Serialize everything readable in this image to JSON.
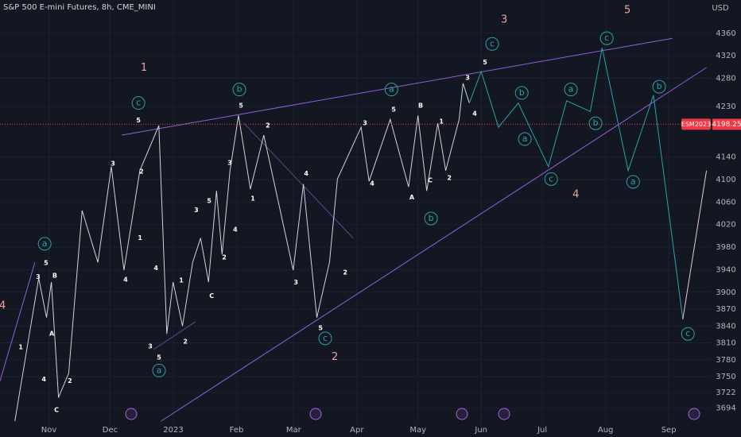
{
  "chart_data": {
    "type": "line",
    "title": "S&P 500 E-mini Futures, 8h, CME_MINI",
    "currency": "USD",
    "background": "#131722",
    "grid": true,
    "xlim": [
      -24,
      325
    ],
    "ylim": [
      3664,
      4419
    ],
    "xticks": [
      {
        "value": 0,
        "label": "Nov"
      },
      {
        "value": 30,
        "label": "Dec"
      },
      {
        "value": 61,
        "label": "2023"
      },
      {
        "value": 92,
        "label": "Feb"
      },
      {
        "value": 120,
        "label": "Mar"
      },
      {
        "value": 151,
        "label": "Apr"
      },
      {
        "value": 181,
        "label": "May"
      },
      {
        "value": 212,
        "label": "Jun"
      },
      {
        "value": 242,
        "label": "Jul"
      },
      {
        "value": 273,
        "label": "Aug"
      },
      {
        "value": 304,
        "label": "Sep"
      }
    ],
    "yticks": [
      4360,
      4320,
      4280,
      4230,
      4140,
      4100,
      4060,
      4020,
      3980,
      3940,
      3900,
      3870,
      3840,
      3810,
      3780,
      3750,
      3722,
      3694
    ],
    "series": [
      {
        "color": "#d1d4dc",
        "x": [
          -16.7,
          -5.0,
          -1.2,
          1.2,
          4.7,
          9.7,
          16.3,
          24.0,
          30.6,
          36.8,
          44.6,
          53.9,
          57.8,
          60.9,
          65.5,
          70.5,
          74.4,
          78.3,
          82.2,
          84.9,
          88.8,
          93.0,
          98.8,
          105.4,
          119.8,
          124.8,
          131.4,
          137.6,
          141.5,
          153.1,
          157.0,
          167.4,
          176.4,
          181.0,
          185.3,
          190.7,
          194.6,
          201.2,
          203.1,
          206.2
        ],
        "values": [
          3671,
          3925,
          3855,
          3918,
          3713,
          3756,
          4045,
          3953,
          4123,
          3939,
          4116,
          4196,
          3826,
          3918,
          3840,
          3953,
          3996,
          3918,
          4080,
          3967,
          4116,
          4214,
          4083,
          4179,
          3939,
          4092,
          3855,
          3953,
          4101,
          4193,
          4097,
          4207,
          4087,
          4214,
          4080,
          4200,
          4116,
          4207,
          4271,
          4236
        ]
      },
      {
        "color": "#26a6a6",
        "x": [
          206.2,
          212.0,
          220.5,
          230.2,
          245.0,
          253.9,
          265.5,
          271.3,
          284.1,
          296.5,
          310.9
        ],
        "values": [
          4236,
          4292,
          4193,
          4236,
          4123,
          4240,
          4221,
          4334,
          4116,
          4250,
          3852
        ]
      },
      {
        "color": "#e6cccc",
        "x": [
          310.9,
          322.5
        ],
        "values": [
          3852,
          4116
        ]
      }
    ],
    "trend_lines": [
      {
        "color": "#8e5fd9",
        "x": [
          35.7,
          305.8
        ],
        "values": [
          4179,
          4351
        ]
      },
      {
        "color": "#8e5fd9",
        "x": [
          55.0,
          322.5
        ],
        "values": [
          3671,
          4299
        ]
      },
      {
        "color": "#5c4a9c",
        "x": [
          95.7,
          149.2
        ],
        "values": [
          4200,
          3996
        ]
      },
      {
        "color": "#5c4a9c",
        "x": [
          51.2,
          71.7
        ],
        "values": [
          3798,
          3847
        ]
      },
      {
        "color": "#8e5fd9",
        "x": [
          -24,
          -6.9
        ],
        "values": [
          3742,
          3953
        ]
      }
    ],
    "last_price": {
      "symbol": "ESM2023",
      "value": 4198.25,
      "color": "#f23645"
    },
    "minor_labels": {
      "color": "#ffffff",
      "items": [
        {
          "text": "5",
          "x": 43.9,
          "y": 4205
        },
        {
          "text": "3",
          "x": 31.4,
          "y": 4128
        },
        {
          "text": "2",
          "x": 45.4,
          "y": 4114
        },
        {
          "text": "1",
          "x": 44.7,
          "y": 3996
        },
        {
          "text": "4",
          "x": 37.6,
          "y": 3922
        },
        {
          "text": "4",
          "x": 52.5,
          "y": 3943
        },
        {
          "text": "3",
          "x": 49.7,
          "y": 3804
        },
        {
          "text": "5",
          "x": 54.0,
          "y": 3784
        },
        {
          "text": "1",
          "x": 64.9,
          "y": 3921
        },
        {
          "text": "2",
          "x": 66.9,
          "y": 3812
        },
        {
          "text": "C",
          "x": 79.8,
          "y": 3893
        },
        {
          "text": "3",
          "x": 72.3,
          "y": 4046
        },
        {
          "text": "5",
          "x": 78.6,
          "y": 4062
        },
        {
          "text": "4",
          "x": 91.4,
          "y": 4011
        },
        {
          "text": "2",
          "x": 86.0,
          "y": 3962
        },
        {
          "text": "3",
          "x": 88.7,
          "y": 4130
        },
        {
          "text": "5",
          "x": 94.2,
          "y": 4231
        },
        {
          "text": "2",
          "x": 107.4,
          "y": 4196
        },
        {
          "text": "1",
          "x": 100.0,
          "y": 4066
        },
        {
          "text": "4",
          "x": 126.2,
          "y": 4111
        },
        {
          "text": "3",
          "x": 121.1,
          "y": 3917
        },
        {
          "text": "5",
          "x": 133.2,
          "y": 3836
        },
        {
          "text": "2",
          "x": 145.3,
          "y": 3935
        },
        {
          "text": "3",
          "x": 155.0,
          "y": 4200
        },
        {
          "text": "4",
          "x": 158.5,
          "y": 4093
        },
        {
          "text": "5",
          "x": 169.1,
          "y": 4224
        },
        {
          "text": "A",
          "x": 178.0,
          "y": 4068
        },
        {
          "text": "B",
          "x": 182.3,
          "y": 4231
        },
        {
          "text": "C",
          "x": 187.0,
          "y": 4099
        },
        {
          "text": "1",
          "x": 192.5,
          "y": 4203
        },
        {
          "text": "2",
          "x": 196.4,
          "y": 4103
        },
        {
          "text": "3",
          "x": 205.3,
          "y": 4281
        },
        {
          "text": "4",
          "x": 208.8,
          "y": 4217
        },
        {
          "text": "5",
          "x": 213.9,
          "y": 4308
        },
        {
          "text": "5",
          "x": -1.4,
          "y": 3952
        },
        {
          "text": "3",
          "x": -5.3,
          "y": 3927
        },
        {
          "text": "B",
          "x": 2.9,
          "y": 3929
        },
        {
          "text": "1",
          "x": -13.8,
          "y": 3802
        },
        {
          "text": "4",
          "x": -2.5,
          "y": 3745
        },
        {
          "text": "C",
          "x": 3.7,
          "y": 3691
        },
        {
          "text": "A",
          "x": 1.4,
          "y": 3826
        },
        {
          "text": "2",
          "x": 10.3,
          "y": 3742
        }
      ]
    },
    "circled_labels": {
      "color": "#26a6a6",
      "items": [
        {
          "text": "a",
          "x": -2.1,
          "y": 3986
        },
        {
          "text": "c",
          "x": 43.9,
          "y": 4236
        },
        {
          "text": "b",
          "x": 93.4,
          "y": 4260
        },
        {
          "text": "a",
          "x": 168.0,
          "y": 4260
        },
        {
          "text": "c",
          "x": 217.4,
          "y": 4341
        },
        {
          "text": "b",
          "x": 231.9,
          "y": 4254
        },
        {
          "text": "a",
          "x": 256.0,
          "y": 4260
        },
        {
          "text": "c",
          "x": 273.6,
          "y": 4351
        },
        {
          "text": "b",
          "x": 299.3,
          "y": 4265
        },
        {
          "text": "a",
          "x": 54.0,
          "y": 3761
        },
        {
          "text": "c",
          "x": 135.5,
          "y": 3818
        },
        {
          "text": "b",
          "x": 187.4,
          "y": 4031
        },
        {
          "text": "a",
          "x": 233.4,
          "y": 4172
        },
        {
          "text": "b",
          "x": 268.1,
          "y": 4200
        },
        {
          "text": "c",
          "x": 246.3,
          "y": 4101
        },
        {
          "text": "a",
          "x": 286.5,
          "y": 4096
        },
        {
          "text": "c",
          "x": 313.4,
          "y": 3826
        }
      ]
    },
    "degree_labels": {
      "color": "#f0a49c",
      "items": [
        {
          "text": "1",
          "x": 46.6,
          "y": 4298
        },
        {
          "text": "2",
          "x": 140.2,
          "y": 3785
        },
        {
          "text": "3",
          "x": 223.3,
          "y": 4384
        },
        {
          "text": "4",
          "x": 258.4,
          "y": 4073
        },
        {
          "text": "5",
          "x": 283.7,
          "y": 4401
        },
        {
          "text": "4",
          "x": -22.8,
          "y": 3876
        }
      ]
    }
  }
}
